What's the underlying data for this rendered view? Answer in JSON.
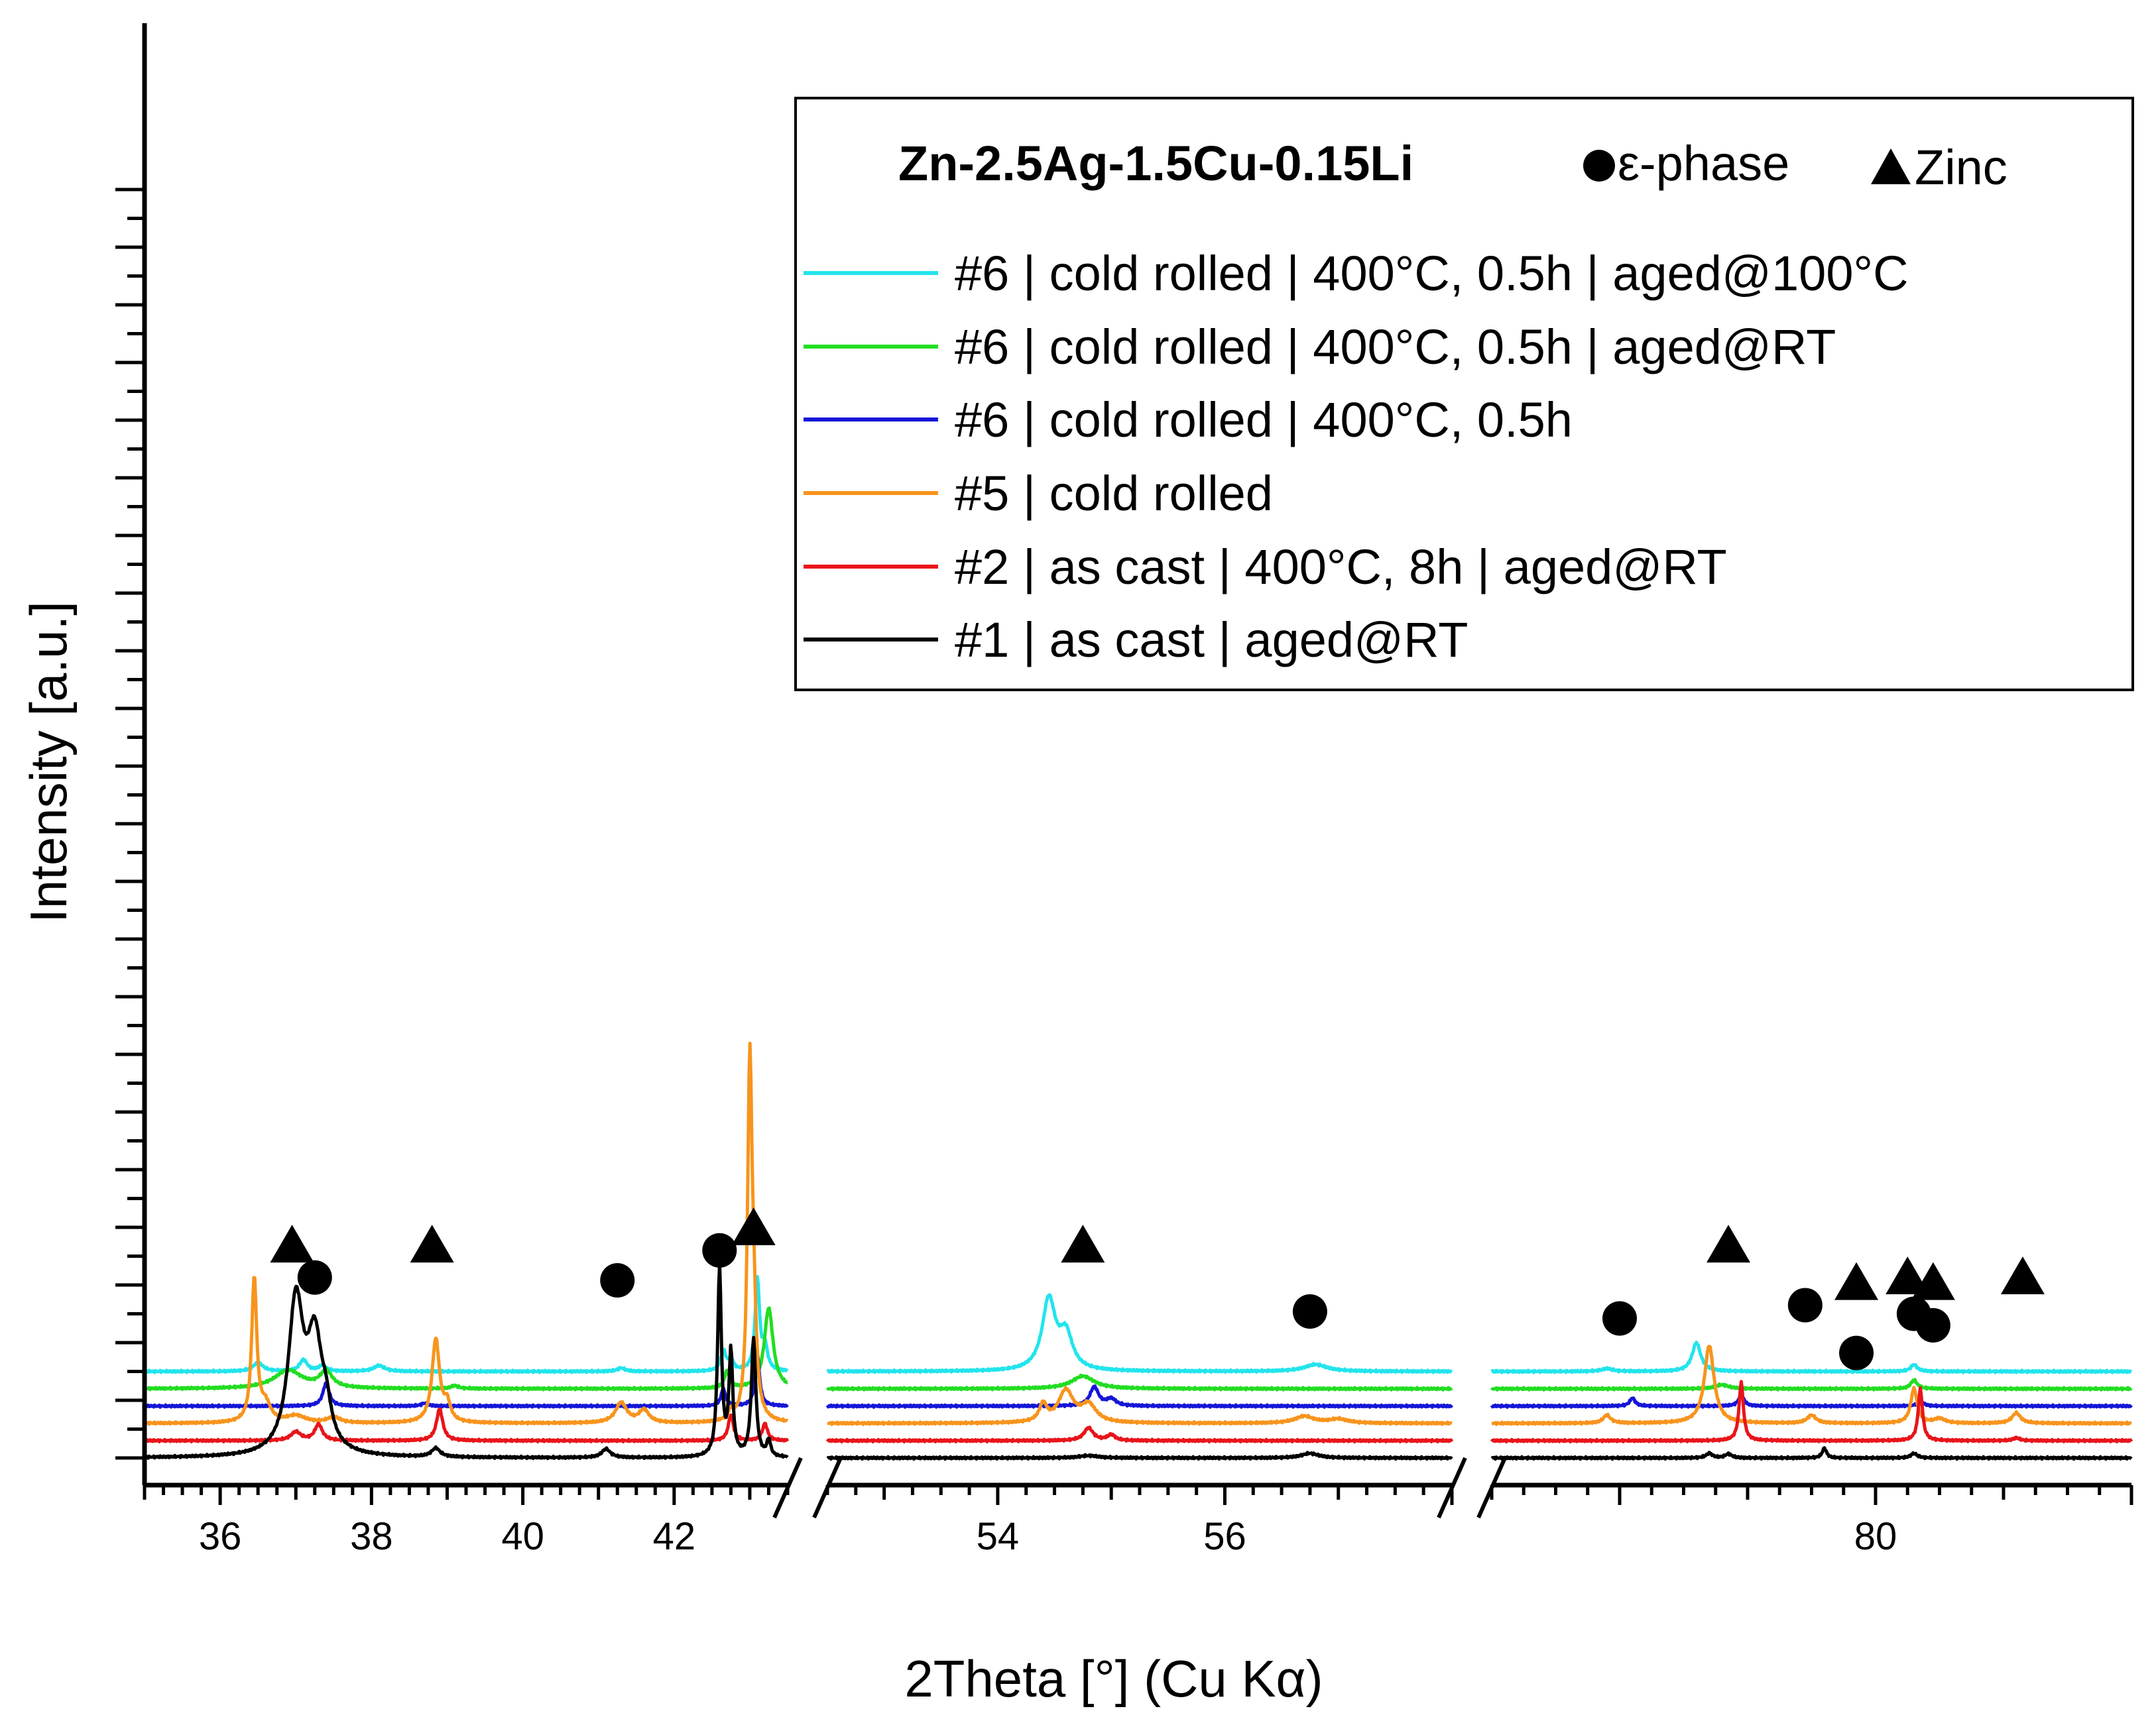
{
  "chart_data": {
    "type": "line",
    "title": "",
    "xlabel": "2Theta [°] (Cu Kα)",
    "ylabel": "Intensity [a.u.]",
    "x_segments": [
      {
        "range": [
          35.0,
          43.5
        ],
        "ticks": [
          36,
          38,
          40,
          42
        ],
        "tick_labels": [
          "36",
          "38",
          "40",
          "42"
        ]
      },
      {
        "range": [
          52.5,
          58.0
        ],
        "ticks": [
          54,
          56
        ],
        "tick_labels": [
          "54",
          "56"
        ]
      },
      {
        "range": [
          77.0,
          82.0
        ],
        "ticks": [
          80
        ],
        "tick_labels": [
          "80"
        ]
      }
    ],
    "legend": {
      "position": "top-right",
      "title": "Zn-2.5Ag-1.5Cu-0.15Li",
      "marker_labels": [
        "ε-phase",
        "Zinc"
      ]
    },
    "series": [
      {
        "name": "#6 | cold rolled | 400°C, 0.5h | aged@100°C",
        "color": "#22e4ec",
        "offset": 1.5,
        "peaks": [
          [
            36.5,
            0.15,
            0.08
          ],
          [
            37.1,
            0.2,
            0.06
          ],
          [
            37.35,
            0.1,
            0.06
          ],
          [
            38.1,
            0.1,
            0.09
          ],
          [
            41.3,
            0.06,
            0.06
          ],
          [
            42.65,
            0.35,
            0.04
          ],
          [
            42.75,
            0.2,
            0.04
          ],
          [
            43.1,
            1.6,
            0.035
          ],
          [
            43.2,
            0.4,
            0.04
          ],
          [
            54.45,
            1.22,
            0.07
          ],
          [
            54.6,
            0.6,
            0.07
          ],
          [
            56.8,
            0.12,
            0.12
          ],
          [
            77.9,
            0.05,
            0.05
          ],
          [
            78.6,
            0.5,
            0.04
          ],
          [
            80.3,
            0.12,
            0.03
          ]
        ]
      },
      {
        "name": "#6 | cold rolled | 400°C, 0.5h | aged@RT",
        "color": "#22dd22",
        "offset": 1.2,
        "peaks": [
          [
            36.9,
            0.32,
            0.22
          ],
          [
            37.4,
            0.28,
            0.1
          ],
          [
            39.1,
            0.05,
            0.06
          ],
          [
            42.7,
            0.3,
            0.04
          ],
          [
            43.25,
            1.4,
            0.07
          ],
          [
            54.75,
            0.22,
            0.12
          ],
          [
            78.8,
            0.07,
            0.06
          ],
          [
            80.3,
            0.15,
            0.03
          ]
        ]
      },
      {
        "name": "#6 | cold rolled | 400°C, 0.5h",
        "color": "#1515d8",
        "offset": 0.9,
        "peaks": [
          [
            37.4,
            0.4,
            0.05
          ],
          [
            38.7,
            0.05,
            0.05
          ],
          [
            42.65,
            0.3,
            0.035
          ],
          [
            43.1,
            0.9,
            0.035
          ],
          [
            54.85,
            0.33,
            0.045
          ],
          [
            55.0,
            0.12,
            0.05
          ],
          [
            78.1,
            0.14,
            0.025
          ],
          [
            78.95,
            0.2,
            0.025
          ],
          [
            80.35,
            0.08,
            0.03
          ]
        ]
      },
      {
        "name": "#5 | cold rolled",
        "color": "#f7941d",
        "offset": 0.6,
        "peaks": [
          [
            36.45,
            2.5,
            0.04
          ],
          [
            36.6,
            0.3,
            0.08
          ],
          [
            37.0,
            0.12,
            0.15
          ],
          [
            37.5,
            0.1,
            0.1
          ],
          [
            38.85,
            1.45,
            0.06
          ],
          [
            39.0,
            0.3,
            0.05
          ],
          [
            41.3,
            0.35,
            0.09
          ],
          [
            41.6,
            0.22,
            0.08
          ],
          [
            42.75,
            0.15,
            0.04
          ],
          [
            43.0,
            6.0,
            0.035
          ],
          [
            43.05,
            1.5,
            0.04
          ],
          [
            54.4,
            0.3,
            0.04
          ],
          [
            54.6,
            0.55,
            0.08
          ],
          [
            54.8,
            0.3,
            0.08
          ],
          [
            56.7,
            0.12,
            0.1
          ],
          [
            57.0,
            0.07,
            0.1
          ],
          [
            77.9,
            0.14,
            0.035
          ],
          [
            78.7,
            1.35,
            0.045
          ],
          [
            79.5,
            0.14,
            0.04
          ],
          [
            80.3,
            0.6,
            0.03
          ],
          [
            80.5,
            0.08,
            0.05
          ],
          [
            81.1,
            0.18,
            0.04
          ]
        ]
      },
      {
        "name": "#2 | as cast | 400°C, 8h | aged@RT",
        "color": "#e8141a",
        "offset": 0.3,
        "peaks": [
          [
            37.0,
            0.15,
            0.08
          ],
          [
            37.3,
            0.28,
            0.06
          ],
          [
            38.9,
            0.55,
            0.05
          ],
          [
            42.75,
            0.45,
            0.04
          ],
          [
            43.2,
            0.3,
            0.04
          ],
          [
            54.8,
            0.22,
            0.05
          ],
          [
            55.0,
            0.1,
            0.04
          ],
          [
            78.95,
            1.02,
            0.02
          ],
          [
            80.35,
            0.9,
            0.02
          ],
          [
            81.1,
            0.05,
            0.03
          ]
        ]
      },
      {
        "name": "#1 | as cast | aged@RT",
        "color": "#000000",
        "offset": 0.0,
        "peaks": [
          [
            37.0,
            2.6,
            0.12
          ],
          [
            37.25,
            1.85,
            0.12
          ],
          [
            37.4,
            0.5,
            0.08
          ],
          [
            38.85,
            0.15,
            0.07
          ],
          [
            41.1,
            0.15,
            0.07
          ],
          [
            42.6,
            3.3,
            0.03
          ],
          [
            42.75,
            1.8,
            0.03
          ],
          [
            43.05,
            2.05,
            0.035
          ],
          [
            43.25,
            0.28,
            0.03
          ],
          [
            54.8,
            0.04,
            0.1
          ],
          [
            56.75,
            0.08,
            0.09
          ],
          [
            78.7,
            0.08,
            0.03
          ],
          [
            78.85,
            0.07,
            0.03
          ],
          [
            79.6,
            0.17,
            0.02
          ],
          [
            80.3,
            0.08,
            0.03
          ]
        ]
      }
    ],
    "markers": [
      {
        "type": "triangle",
        "x": 36.95,
        "y": 3.7
      },
      {
        "type": "triangle",
        "x": 38.8,
        "y": 3.7
      },
      {
        "type": "triangle",
        "x": 43.05,
        "y": 4.0
      },
      {
        "type": "triangle",
        "x": 54.75,
        "y": 3.7
      },
      {
        "type": "triangle",
        "x": 78.85,
        "y": 3.7
      },
      {
        "type": "triangle",
        "x": 79.85,
        "y": 3.05
      },
      {
        "type": "triangle",
        "x": 80.25,
        "y": 3.15
      },
      {
        "type": "triangle",
        "x": 80.45,
        "y": 3.05
      },
      {
        "type": "triangle",
        "x": 81.15,
        "y": 3.15
      },
      {
        "type": "circle",
        "x": 37.25,
        "y": 3.13
      },
      {
        "type": "circle",
        "x": 41.25,
        "y": 3.08
      },
      {
        "type": "circle",
        "x": 42.6,
        "y": 3.6
      },
      {
        "type": "circle",
        "x": 56.75,
        "y": 2.54
      },
      {
        "type": "circle",
        "x": 78.0,
        "y": 2.42
      },
      {
        "type": "circle",
        "x": 79.45,
        "y": 2.65
      },
      {
        "type": "circle",
        "x": 79.85,
        "y": 1.82
      },
      {
        "type": "circle",
        "x": 80.3,
        "y": 2.5
      },
      {
        "type": "circle",
        "x": 80.45,
        "y": 2.3
      }
    ]
  }
}
